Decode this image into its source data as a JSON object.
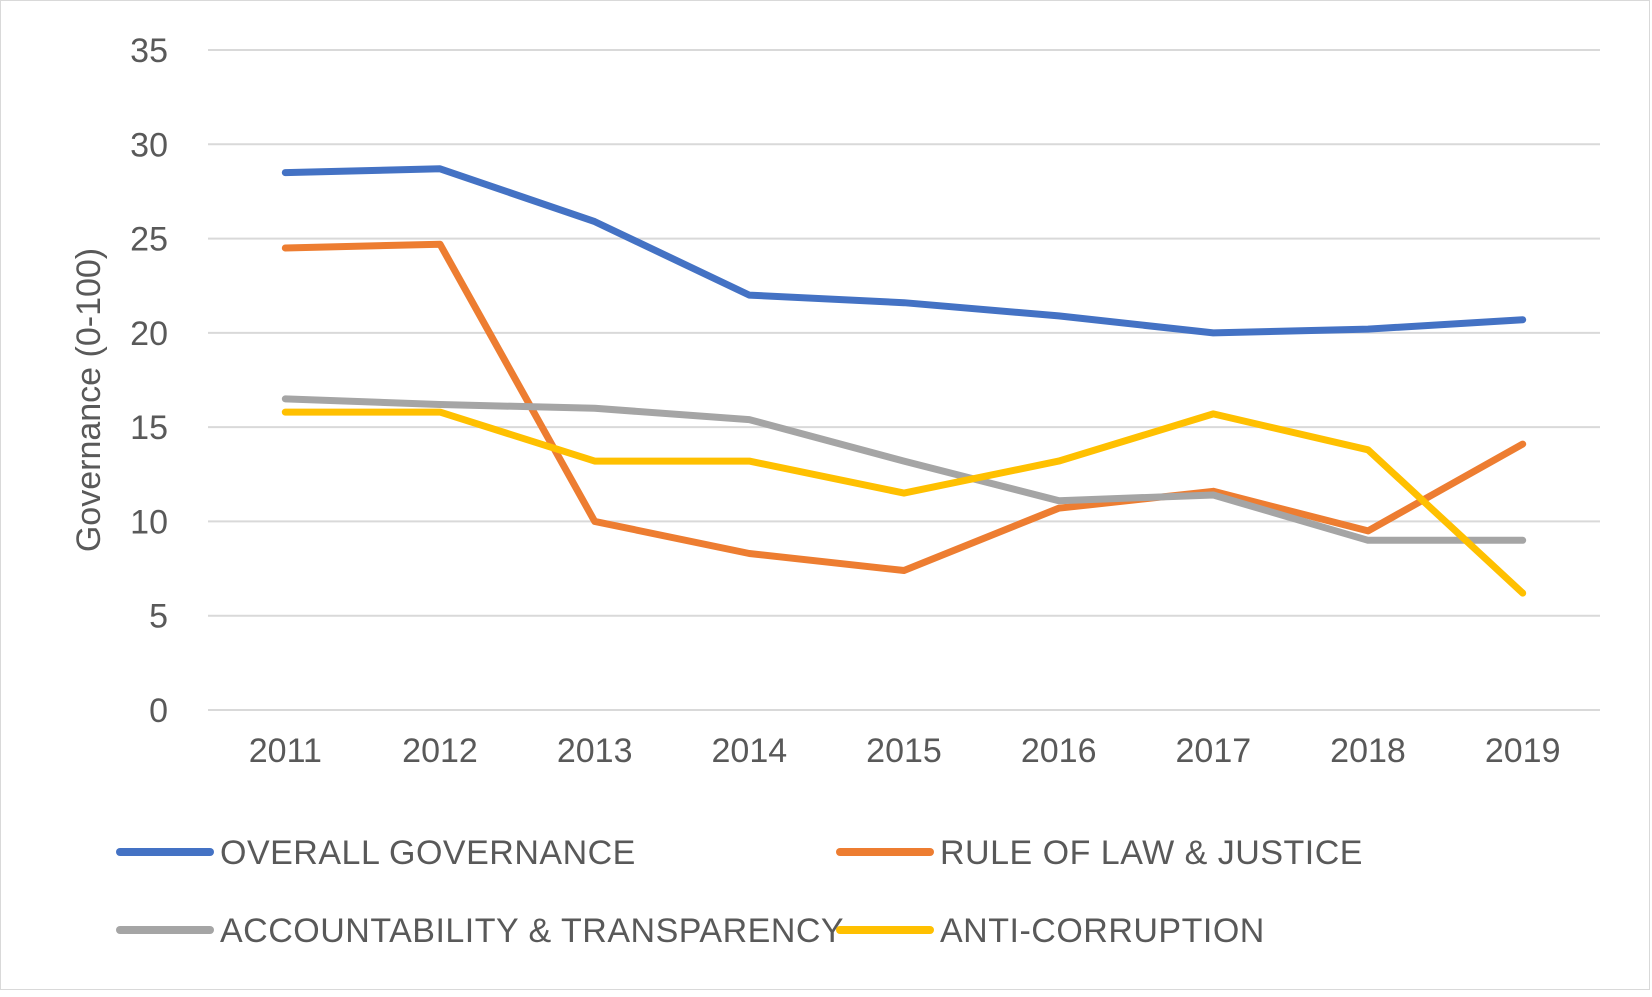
{
  "chart_data": {
    "type": "line",
    "title": "",
    "xlabel": "",
    "ylabel": "Governance  (0-100)",
    "categories": [
      "2011",
      "2012",
      "2013",
      "2014",
      "2015",
      "2016",
      "2017",
      "2018",
      "2019"
    ],
    "ylim": [
      0,
      35
    ],
    "yticks": [
      0,
      5,
      10,
      15,
      20,
      25,
      30,
      35
    ],
    "grid": true,
    "legend_position": "bottom",
    "series": [
      {
        "name": "OVERALL GOVERNANCE",
        "color": "#4472C4",
        "values": [
          28.5,
          28.7,
          25.9,
          22.0,
          21.6,
          20.9,
          20.0,
          20.2,
          20.7
        ]
      },
      {
        "name": "RULE OF LAW & JUSTICE",
        "color": "#ED7D31",
        "values": [
          24.5,
          24.7,
          10.0,
          8.3,
          7.4,
          10.7,
          11.6,
          9.5,
          14.1
        ]
      },
      {
        "name": "ACCOUNTABILITY & TRANSPARENCY",
        "color": "#A5A5A5",
        "values": [
          16.5,
          16.2,
          16.0,
          15.4,
          13.2,
          11.1,
          11.4,
          9.0,
          9.0
        ]
      },
      {
        "name": "ANTI-CORRUPTION",
        "color": "#FFC000",
        "values": [
          15.8,
          15.8,
          13.2,
          13.2,
          11.5,
          13.2,
          15.7,
          13.8,
          6.2
        ]
      }
    ]
  }
}
